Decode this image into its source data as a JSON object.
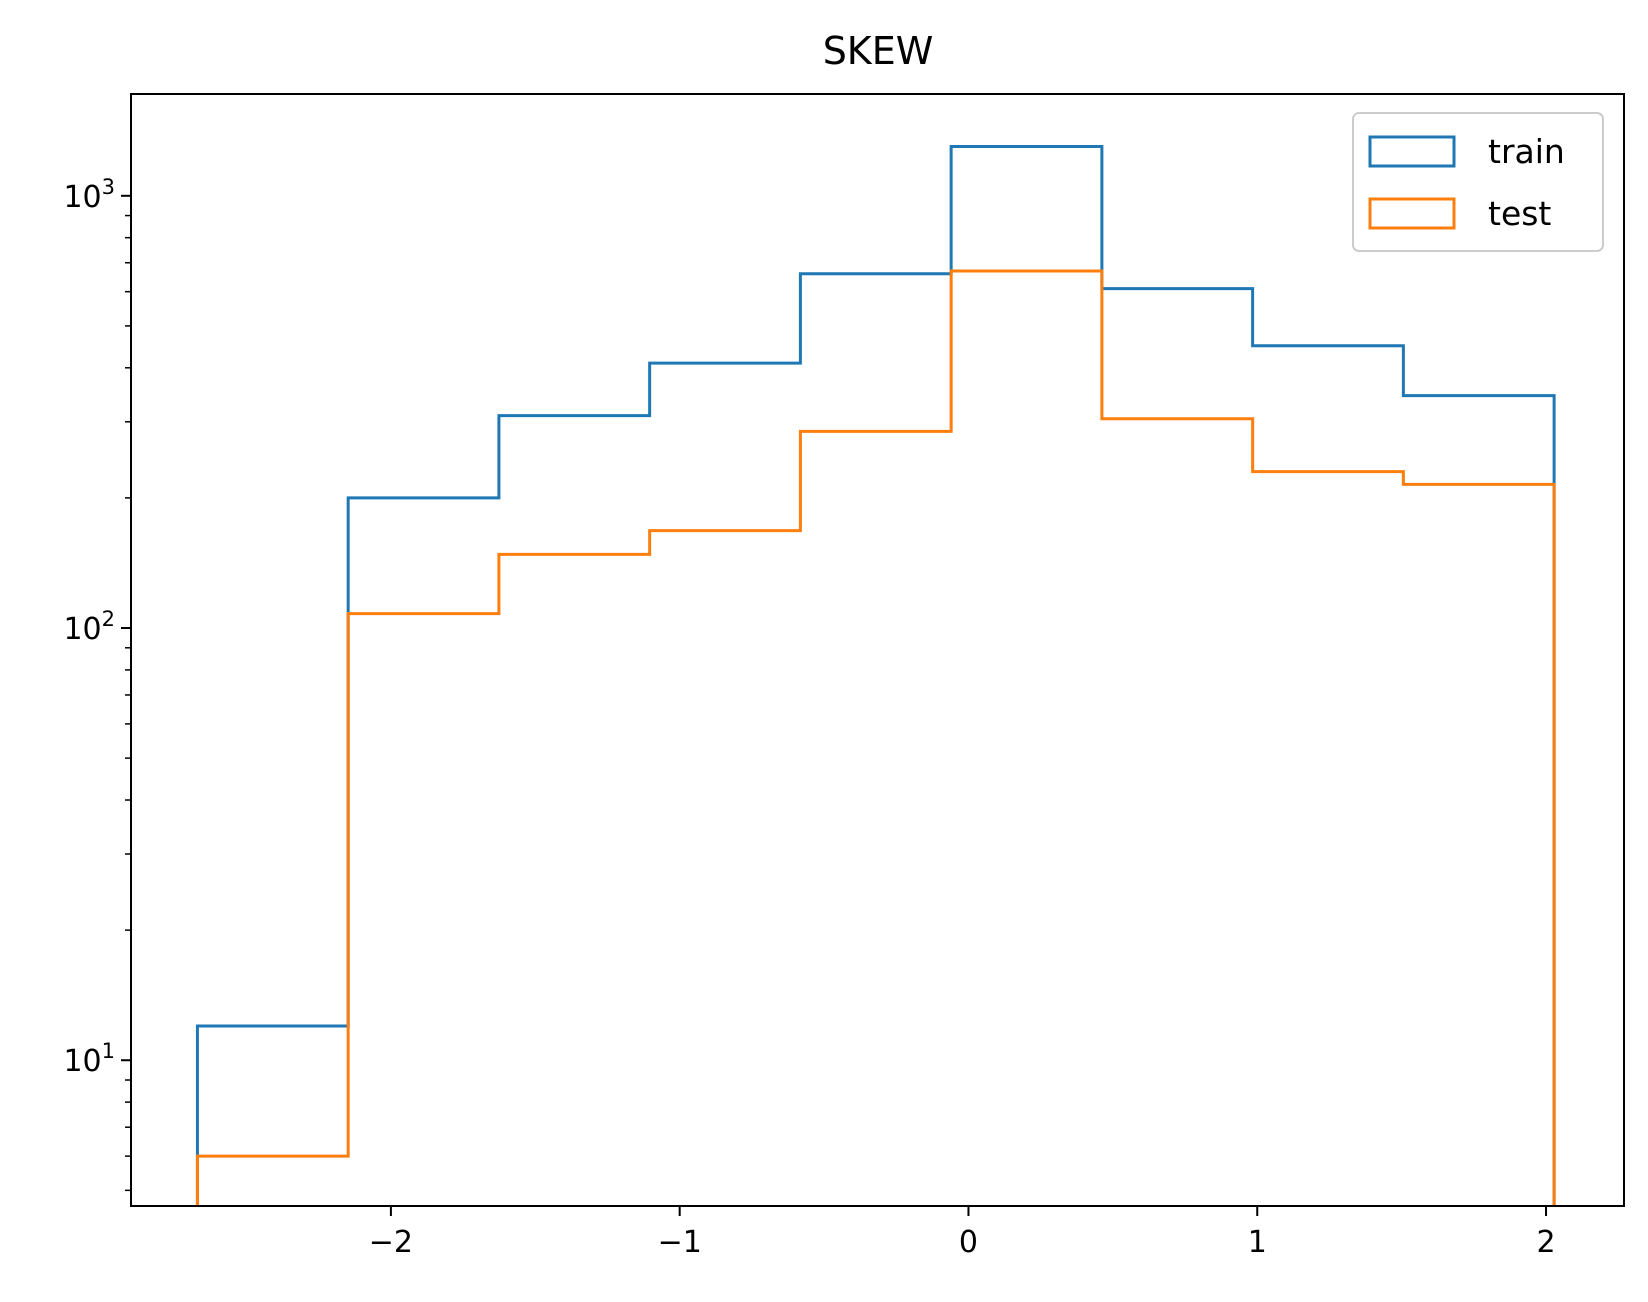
{
  "chart_data": {
    "type": "histogram",
    "title": "SKEW",
    "xlabel": "",
    "ylabel": "",
    "y_scale": "log",
    "xlim": [
      -2.9,
      2.27
    ],
    "ylim": [
      4.6,
      1720
    ],
    "x_ticks": [
      -2,
      -1,
      0,
      1,
      2
    ],
    "x_tick_labels": [
      "−2",
      "−1",
      "0",
      "1",
      "2"
    ],
    "y_ticks": [
      10,
      100,
      1000
    ],
    "y_tick_labels": [
      {
        "base": "10",
        "exp": "1"
      },
      {
        "base": "10",
        "exp": "2"
      },
      {
        "base": "10",
        "exp": "3"
      }
    ],
    "bin_edges": [
      -2.67,
      -2.148,
      -1.626,
      -1.104,
      -0.582,
      -0.06,
      0.462,
      0.984,
      1.506,
      2.028
    ],
    "series": [
      {
        "name": "train",
        "color": "#1f77b4",
        "values": [
          12,
          200,
          310,
          410,
          660,
          1300,
          610,
          450,
          345
        ]
      },
      {
        "name": "test",
        "color": "#ff7f0e",
        "values": [
          6,
          108,
          148,
          168,
          285,
          670,
          305,
          230,
          215
        ]
      }
    ],
    "legend": {
      "position": "top-right",
      "entries": [
        "train",
        "test"
      ]
    },
    "grid": false
  }
}
